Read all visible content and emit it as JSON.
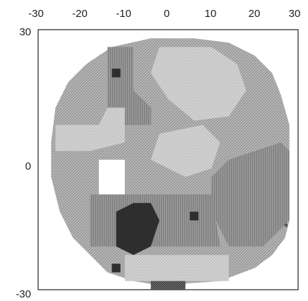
{
  "figure": {
    "x_ticks": [
      "-30",
      "-20",
      "-10",
      "0",
      "10",
      "20",
      "30"
    ],
    "y_ticks": [
      "30",
      "0",
      "-30"
    ],
    "marker_symbol": "*"
  },
  "chart_data": {
    "type": "heatmap",
    "title": "",
    "xlabel": "",
    "ylabel": "",
    "xlim": [
      -30,
      30
    ],
    "ylim": [
      -30,
      30
    ],
    "x_ticks": [
      -30,
      -20,
      -10,
      0,
      10,
      20,
      30
    ],
    "y_ticks": [
      30,
      0,
      -30
    ],
    "grid": false,
    "levels": [
      {
        "level": 0,
        "color": "#ffffff"
      },
      {
        "level": 1,
        "color": "#d6d6d6"
      },
      {
        "level": 2,
        "color": "#b3b3b3"
      },
      {
        "level": 3,
        "color": "#8f8f8f"
      },
      {
        "level": 4,
        "color": "#6a6a6a"
      },
      {
        "level": 5,
        "color": "#2e2e2e"
      }
    ],
    "regions": [
      {
        "name": "field",
        "level": 2,
        "polygon": [
          [
            -4,
            28
          ],
          [
            6,
            28
          ],
          [
            14,
            27
          ],
          [
            20,
            24
          ],
          [
            24,
            20
          ],
          [
            26,
            15
          ],
          [
            28,
            8
          ],
          [
            28,
            -14
          ],
          [
            27,
            -18
          ],
          [
            24,
            -22
          ],
          [
            20,
            -25
          ],
          [
            12,
            -28
          ],
          [
            -2,
            -29
          ],
          [
            -8,
            -28
          ],
          [
            -14,
            -26
          ],
          [
            -18,
            -22
          ],
          [
            -22,
            -18
          ],
          [
            -25,
            -12
          ],
          [
            -27,
            -4
          ],
          [
            -27,
            4
          ],
          [
            -26,
            12
          ],
          [
            -23,
            18
          ],
          [
            -19,
            22
          ],
          [
            -13,
            26
          ]
        ]
      },
      {
        "name": "upper-center-light",
        "level": 1,
        "polygon": [
          [
            -2,
            26
          ],
          [
            10,
            26
          ],
          [
            16,
            22
          ],
          [
            18,
            16
          ],
          [
            14,
            10
          ],
          [
            6,
            9
          ],
          [
            0,
            14
          ],
          [
            -4,
            20
          ]
        ]
      },
      {
        "name": "upper-left-band",
        "level": 3,
        "polygon": [
          [
            -14,
            26
          ],
          [
            -8,
            26
          ],
          [
            -8,
            16
          ],
          [
            -4,
            12
          ],
          [
            -4,
            8
          ],
          [
            -10,
            8
          ],
          [
            -14,
            12
          ]
        ]
      },
      {
        "name": "left-light",
        "level": 1,
        "polygon": [
          [
            -26,
            8
          ],
          [
            -16,
            8
          ],
          [
            -14,
            12
          ],
          [
            -10,
            12
          ],
          [
            -10,
            4
          ],
          [
            -18,
            2
          ],
          [
            -26,
            2
          ]
        ]
      },
      {
        "name": "center-light",
        "level": 1,
        "polygon": [
          [
            -2,
            6
          ],
          [
            8,
            8
          ],
          [
            12,
            4
          ],
          [
            10,
            -2
          ],
          [
            4,
            -4
          ],
          [
            -4,
            0
          ]
        ]
      },
      {
        "name": "right-medium",
        "level": 3,
        "polygon": [
          [
            14,
            0
          ],
          [
            26,
            4
          ],
          [
            28,
            2
          ],
          [
            28,
            -14
          ],
          [
            22,
            -20
          ],
          [
            14,
            -20
          ],
          [
            10,
            -12
          ],
          [
            10,
            -4
          ]
        ]
      },
      {
        "name": "lower-center-band",
        "level": 3,
        "polygon": [
          [
            -18,
            -8
          ],
          [
            10,
            -8
          ],
          [
            12,
            -20
          ],
          [
            -18,
            -20
          ]
        ]
      },
      {
        "name": "blind-spot",
        "level": 0,
        "polygon": [
          [
            -16,
            0
          ],
          [
            -10,
            0
          ],
          [
            -10,
            -8
          ],
          [
            -16,
            -8
          ]
        ]
      },
      {
        "name": "bottom-light",
        "level": 1,
        "polygon": [
          [
            -10,
            -22
          ],
          [
            14,
            -22
          ],
          [
            14,
            -28
          ],
          [
            -10,
            -28
          ]
        ]
      },
      {
        "name": "dense-lower-left",
        "level": 5,
        "polygon": [
          [
            -12,
            -12
          ],
          [
            -8,
            -10
          ],
          [
            -4,
            -10
          ],
          [
            -2,
            -14
          ],
          [
            -4,
            -20
          ],
          [
            -8,
            -22
          ],
          [
            -12,
            -20
          ]
        ]
      },
      {
        "name": "spot-upper-left",
        "level": 5,
        "polygon": [
          [
            -13,
            21
          ],
          [
            -11,
            21
          ],
          [
            -11,
            19
          ],
          [
            -13,
            19
          ]
        ]
      },
      {
        "name": "spot-lower-right",
        "level": 5,
        "polygon": [
          [
            5,
            -12
          ],
          [
            7,
            -12
          ],
          [
            7,
            -14
          ],
          [
            5,
            -14
          ]
        ]
      },
      {
        "name": "spot-lower-left",
        "level": 5,
        "polygon": [
          [
            -13,
            -24
          ],
          [
            -11,
            -24
          ],
          [
            -11,
            -26
          ],
          [
            -13,
            -26
          ]
        ]
      },
      {
        "name": "dark-bottom-strip",
        "level": 4,
        "polygon": [
          [
            -4,
            -28
          ],
          [
            4,
            -28
          ],
          [
            4,
            -30
          ],
          [
            -4,
            -30
          ]
        ]
      }
    ]
  }
}
